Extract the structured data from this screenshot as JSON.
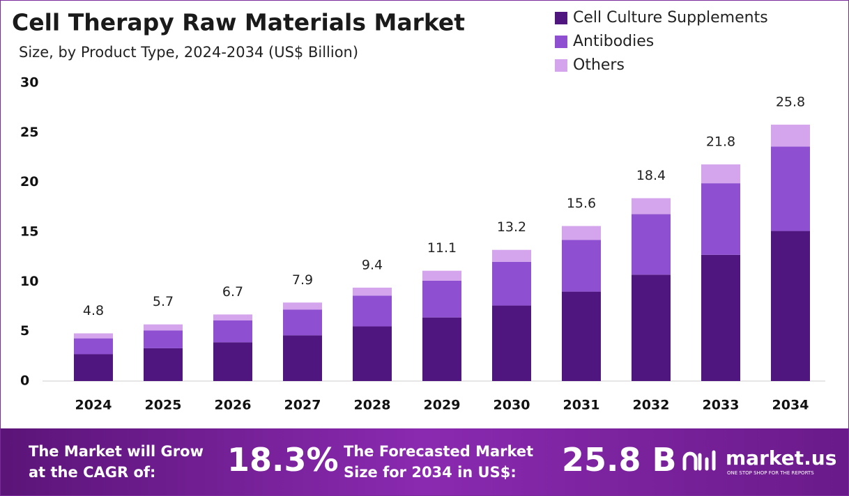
{
  "chart_data": {
    "type": "stacked-bar",
    "title": "Cell Therapy Raw Materials Market",
    "subtitle": "Size, by Product Type, 2024-2034 (US$ Billion)",
    "categories": [
      "2024",
      "2025",
      "2026",
      "2027",
      "2028",
      "2029",
      "2030",
      "2031",
      "2032",
      "2033",
      "2034"
    ],
    "series": [
      {
        "name": "Cell Culture Supplements",
        "color": "#4f1680",
        "values": [
          2.7,
          3.3,
          3.9,
          4.6,
          5.5,
          6.4,
          7.6,
          9.0,
          10.7,
          12.7,
          15.1
        ]
      },
      {
        "name": "Antibodies",
        "color": "#8e4fd0",
        "values": [
          1.6,
          1.8,
          2.2,
          2.6,
          3.1,
          3.7,
          4.4,
          5.2,
          6.1,
          7.2,
          8.5
        ]
      },
      {
        "name": "Others",
        "color": "#d4a5ec",
        "values": [
          0.5,
          0.6,
          0.6,
          0.7,
          0.8,
          1.0,
          1.2,
          1.4,
          1.6,
          1.9,
          2.2
        ]
      }
    ],
    "totals": [
      4.8,
      5.7,
      6.7,
      7.9,
      9.4,
      11.1,
      13.2,
      15.6,
      18.4,
      21.8,
      25.8
    ],
    "ylim": [
      0,
      30
    ],
    "yticks": [
      0,
      5,
      10,
      15,
      20,
      25,
      30
    ],
    "grid": false,
    "legend": "top-right"
  },
  "footer": {
    "cagr_text": "The Market will Grow at the CAGR of:",
    "cagr_value": "18.3%",
    "forecast_text": "The Forecasted Market Size for 2034 in US$:",
    "forecast_value": "25.8 B",
    "brand": "market.us",
    "tagline": "ONE STOP SHOP FOR THE REPORTS"
  }
}
